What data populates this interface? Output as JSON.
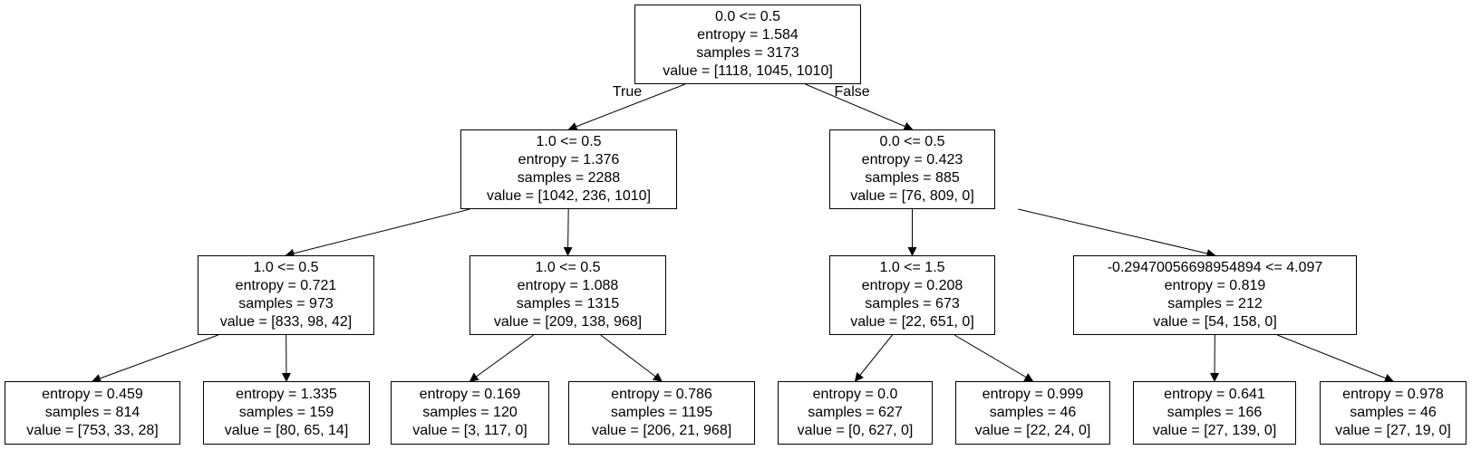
{
  "tree": {
    "nodes": [
      {
        "id": "n0",
        "lines": [
          "0.0 <= 0.5",
          "entropy = 1.584",
          "samples = 3173",
          "value = [1118, 1045, 1010]"
        ]
      },
      {
        "id": "n1",
        "lines": [
          "1.0 <= 0.5",
          "entropy = 1.376",
          "samples = 2288",
          "value = [1042, 236, 1010]"
        ]
      },
      {
        "id": "n2",
        "lines": [
          "0.0 <= 0.5",
          "entropy = 0.423",
          "samples = 885",
          "value = [76, 809, 0]"
        ]
      },
      {
        "id": "n3",
        "lines": [
          "1.0 <= 0.5",
          "entropy = 0.721",
          "samples = 973",
          "value = [833, 98, 42]"
        ]
      },
      {
        "id": "n4",
        "lines": [
          "1.0 <= 0.5",
          "entropy = 1.088",
          "samples = 1315",
          "value = [209, 138, 968]"
        ]
      },
      {
        "id": "n5",
        "lines": [
          "1.0 <= 1.5",
          "entropy = 0.208",
          "samples = 673",
          "value = [22, 651, 0]"
        ]
      },
      {
        "id": "n6",
        "lines": [
          "-0.29470056698954894 <= 4.097",
          "entropy = 0.819",
          "samples = 212",
          "value = [54, 158, 0]"
        ]
      },
      {
        "id": "n7",
        "lines": [
          "entropy = 0.459",
          "samples = 814",
          "value = [753, 33, 28]"
        ]
      },
      {
        "id": "n8",
        "lines": [
          "entropy = 1.335",
          "samples = 159",
          "value = [80, 65, 14]"
        ]
      },
      {
        "id": "n9",
        "lines": [
          "entropy = 0.169",
          "samples = 120",
          "value = [3, 117, 0]"
        ]
      },
      {
        "id": "n10",
        "lines": [
          "entropy = 0.786",
          "samples = 1195",
          "value = [206, 21, 968]"
        ]
      },
      {
        "id": "n11",
        "lines": [
          "entropy = 0.0",
          "samples = 627",
          "value = [0, 627, 0]"
        ]
      },
      {
        "id": "n12",
        "lines": [
          "entropy = 0.999",
          "samples = 46",
          "value = [22, 24, 0]"
        ]
      },
      {
        "id": "n13",
        "lines": [
          "entropy = 0.641",
          "samples = 166",
          "value = [27, 139, 0]"
        ]
      },
      {
        "id": "n14",
        "lines": [
          "entropy = 0.978",
          "samples = 46",
          "value = [27, 19, 0]"
        ]
      }
    ],
    "edges": [
      {
        "from": "n0",
        "to": "n1",
        "label": "True"
      },
      {
        "from": "n0",
        "to": "n2",
        "label": "False"
      },
      {
        "from": "n1",
        "to": "n3",
        "label": ""
      },
      {
        "from": "n1",
        "to": "n4",
        "label": ""
      },
      {
        "from": "n2",
        "to": "n5",
        "label": ""
      },
      {
        "from": "n2",
        "to": "n6",
        "label": ""
      },
      {
        "from": "n3",
        "to": "n7",
        "label": ""
      },
      {
        "from": "n3",
        "to": "n8",
        "label": ""
      },
      {
        "from": "n4",
        "to": "n9",
        "label": ""
      },
      {
        "from": "n4",
        "to": "n10",
        "label": ""
      },
      {
        "from": "n5",
        "to": "n11",
        "label": ""
      },
      {
        "from": "n5",
        "to": "n12",
        "label": ""
      },
      {
        "from": "n6",
        "to": "n13",
        "label": ""
      },
      {
        "from": "n6",
        "to": "n14",
        "label": ""
      }
    ]
  }
}
